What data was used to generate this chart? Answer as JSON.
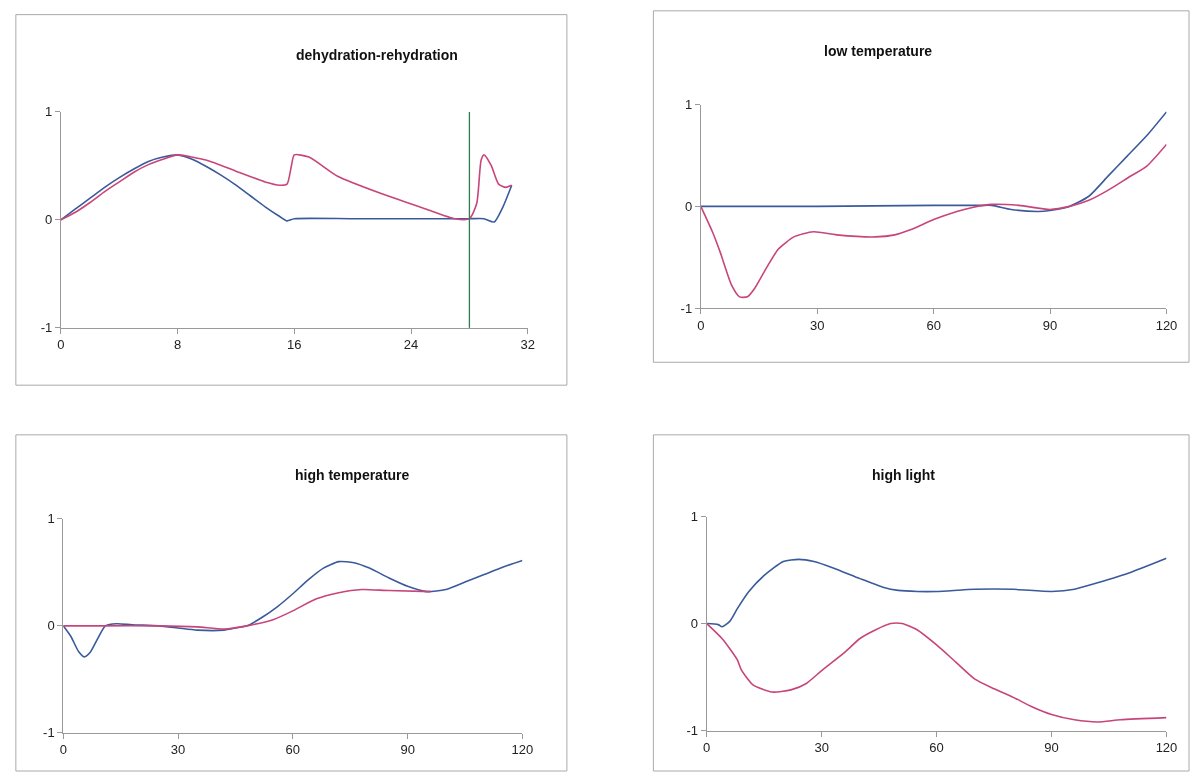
{
  "chart_data": [
    {
      "type": "line",
      "title": "dehydration-rehydration",
      "xlim": [
        0,
        32
      ],
      "xticks": [
        0,
        8,
        16,
        24,
        32
      ],
      "ylim": [
        -1,
        1
      ],
      "yticks": [
        -1,
        0,
        1
      ],
      "ref_lines": [
        {
          "axis": "x",
          "value": 28,
          "color": "#2e7d4f"
        }
      ],
      "series": [
        {
          "color": "#3a5a9c",
          "x": [
            0,
            1,
            2,
            3,
            4,
            5,
            6,
            7,
            8,
            9,
            10,
            11,
            12,
            13,
            14,
            15,
            15.5,
            16,
            20,
            24,
            28,
            29,
            29.7,
            30.3,
            30.9
          ],
          "values": [
            0,
            0.1,
            0.2,
            0.3,
            0.39,
            0.47,
            0.54,
            0.58,
            0.6,
            0.56,
            0.49,
            0.41,
            0.32,
            0.22,
            0.12,
            0.03,
            -0.01,
            0.01,
            0.01,
            0.01,
            0.01,
            0.01,
            -0.02,
            0.12,
            0.32
          ]
        },
        {
          "color": "#c8457a",
          "x": [
            0,
            1,
            2,
            3,
            4,
            5,
            6,
            7,
            8,
            10,
            12,
            14,
            15,
            15.5,
            15.8,
            16,
            17,
            19,
            22,
            25,
            27,
            28,
            28.5,
            28.8,
            29,
            29.5,
            30,
            30.5,
            30.9
          ],
          "values": [
            0,
            0.07,
            0.16,
            0.26,
            0.35,
            0.44,
            0.51,
            0.56,
            0.6,
            0.55,
            0.45,
            0.35,
            0.32,
            0.33,
            0.5,
            0.6,
            0.58,
            0.4,
            0.24,
            0.1,
            0.01,
            0.01,
            0.15,
            0.55,
            0.6,
            0.5,
            0.33,
            0.3,
            0.32
          ]
        }
      ]
    },
    {
      "type": "line",
      "title": "low temperature",
      "xlim": [
        0,
        120
      ],
      "xticks": [
        0,
        30,
        60,
        90,
        120
      ],
      "ylim": [
        -1,
        1
      ],
      "yticks": [
        -1,
        0,
        1
      ],
      "series": [
        {
          "color": "#3a5a9c",
          "x": [
            0,
            30,
            60,
            72,
            75,
            80,
            87,
            90,
            95,
            100,
            105,
            110,
            115,
            120
          ],
          "values": [
            0,
            0,
            0.01,
            0.01,
            0.01,
            -0.03,
            -0.05,
            -0.04,
            0,
            0.1,
            0.3,
            0.5,
            0.7,
            0.93
          ]
        },
        {
          "color": "#c8457a",
          "x": [
            0,
            3,
            5,
            8,
            10,
            12,
            14,
            17,
            20,
            24,
            29,
            35,
            45,
            50,
            54,
            60,
            66,
            70,
            75,
            82,
            90,
            95,
            100,
            105,
            110,
            115,
            120
          ],
          "values": [
            0,
            -0.25,
            -0.45,
            -0.78,
            -0.89,
            -0.89,
            -0.8,
            -0.6,
            -0.42,
            -0.3,
            -0.25,
            -0.28,
            -0.3,
            -0.28,
            -0.23,
            -0.13,
            -0.05,
            -0.01,
            0.02,
            0.01,
            -0.03,
            0,
            0.06,
            0.16,
            0.28,
            0.4,
            0.61
          ]
        }
      ]
    },
    {
      "type": "line",
      "title": "high temperature",
      "xlim": [
        0,
        120
      ],
      "xticks": [
        0,
        30,
        60,
        90,
        120
      ],
      "ylim": [
        -1,
        1
      ],
      "yticks": [
        -1,
        0,
        1
      ],
      "series": [
        {
          "color": "#3a5a9c",
          "x": [
            0,
            2,
            4,
            5.5,
            7,
            9,
            11,
            14,
            18,
            25,
            30,
            35,
            42,
            45,
            48,
            52,
            56,
            60,
            64,
            68,
            72,
            76,
            80,
            85,
            90,
            95,
            100,
            105,
            110,
            115,
            120
          ],
          "values": [
            0,
            -0.1,
            -0.24,
            -0.29,
            -0.25,
            -0.12,
            0,
            0.02,
            0.01,
            0,
            -0.02,
            -0.04,
            -0.04,
            -0.02,
            0,
            0.08,
            0.18,
            0.3,
            0.43,
            0.54,
            0.6,
            0.59,
            0.54,
            0.45,
            0.37,
            0.32,
            0.34,
            0.41,
            0.48,
            0.55,
            0.61
          ]
        },
        {
          "color": "#c8457a",
          "x": [
            0,
            10,
            25,
            35,
            42,
            48,
            55,
            60,
            66,
            72,
            78,
            85,
            96
          ],
          "values": [
            0,
            0,
            0,
            -0.01,
            -0.03,
            0,
            0.06,
            0.14,
            0.25,
            0.31,
            0.34,
            0.33,
            0.32
          ]
        }
      ]
    },
    {
      "type": "line",
      "title": "high light",
      "xlim": [
        0,
        120
      ],
      "xticks": [
        0,
        30,
        60,
        90,
        120
      ],
      "ylim": [
        -1,
        1
      ],
      "yticks": [
        -1,
        0,
        1
      ],
      "series": [
        {
          "color": "#3a5a9c",
          "x": [
            0,
            3,
            4,
            6,
            8,
            11,
            15,
            20,
            24,
            28,
            33,
            40,
            46,
            50,
            55,
            60,
            70,
            80,
            90,
            96,
            100,
            110,
            120
          ],
          "values": [
            0,
            -0.01,
            -0.03,
            0.02,
            0.14,
            0.3,
            0.45,
            0.58,
            0.6,
            0.58,
            0.52,
            0.42,
            0.34,
            0.31,
            0.3,
            0.3,
            0.32,
            0.32,
            0.3,
            0.32,
            0.36,
            0.47,
            0.61
          ]
        },
        {
          "color": "#c8457a",
          "x": [
            0,
            4,
            8,
            9,
            12,
            17,
            22,
            26,
            30,
            36,
            40,
            44,
            48,
            51,
            55,
            60,
            65,
            70,
            75,
            80,
            85,
            90,
            96,
            102,
            108,
            120
          ],
          "values": [
            0,
            -0.14,
            -0.34,
            -0.43,
            -0.57,
            -0.64,
            -0.62,
            -0.56,
            -0.44,
            -0.27,
            -0.14,
            -0.06,
            0,
            0,
            -0.06,
            -0.2,
            -0.36,
            -0.52,
            -0.61,
            -0.69,
            -0.78,
            -0.85,
            -0.9,
            -0.92,
            -0.9,
            -0.88
          ]
        }
      ]
    }
  ]
}
